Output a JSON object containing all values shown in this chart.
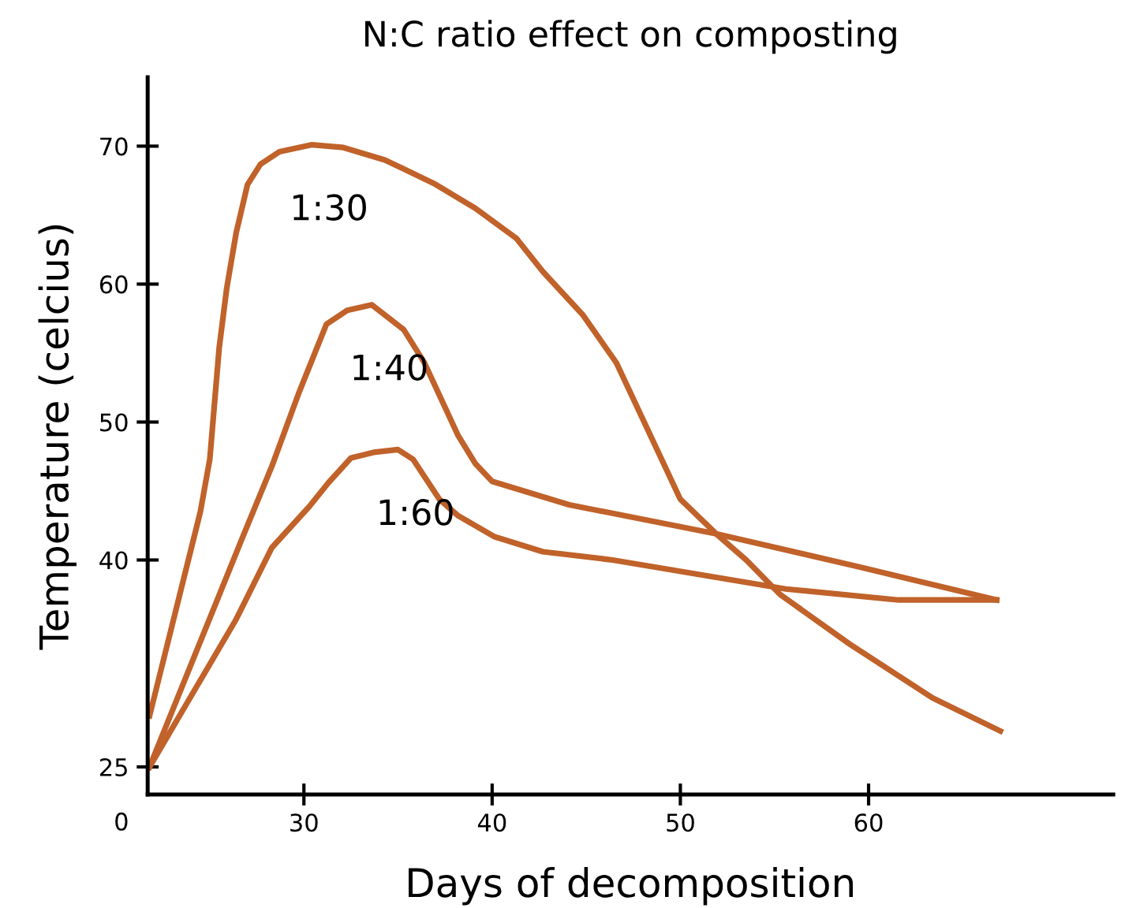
{
  "chart_data": {
    "type": "line",
    "title": "N:C ratio effect on composting",
    "xlabel": "Days of decomposition",
    "ylabel": "Temperature (celcius)",
    "xlim": [
      21.7,
      73
    ],
    "ylim": [
      23,
      75
    ],
    "xticks": [
      30,
      40,
      50,
      60
    ],
    "yticks": [
      25,
      40,
      50,
      60,
      70
    ],
    "grid": false,
    "marker": "none",
    "line_style": "solid",
    "series": [
      {
        "name": "1:30",
        "color": "#c0622a",
        "x": [
          21.8,
          24.5,
          25.0,
          25.5,
          25.9,
          26.4,
          27.0,
          27.7,
          28.7,
          30.4,
          32.1,
          34.3,
          36.9,
          39.1,
          41.3,
          42.7,
          44.8,
          46.6,
          50.0,
          51.9,
          53.5,
          55.3,
          59.0,
          63.4,
          67.0
        ],
        "values": [
          28.7,
          43.5,
          47.3,
          55.4,
          59.7,
          63.7,
          67.2,
          68.7,
          69.6,
          70.1,
          69.9,
          69.0,
          67.3,
          65.5,
          63.3,
          60.9,
          57.8,
          54.3,
          44.4,
          41.9,
          40.0,
          37.5,
          33.9,
          30.0,
          27.6
        ]
      },
      {
        "name": "1:40",
        "color": "#c0622a",
        "x": [
          21.8,
          26.7,
          28.3,
          29.7,
          31.2,
          32.3,
          33.6,
          35.3,
          36.4,
          38.2,
          39.1,
          40.0,
          44.1,
          51.9,
          59.5,
          66.8
        ],
        "values": [
          25,
          41.5,
          46.8,
          52.0,
          57.1,
          58.1,
          58.5,
          56.7,
          54.3,
          49.0,
          47.0,
          45.7,
          44.0,
          41.9,
          39.5,
          37.1
        ]
      },
      {
        "name": "1:60",
        "color": "#c0622a",
        "x": [
          21.8,
          26.4,
          28.3,
          30.3,
          31.3,
          32.5,
          33.7,
          35.0,
          35.8,
          37.2,
          38.2,
          40.1,
          42.7,
          46.4,
          55.6,
          61.6,
          66.8
        ],
        "values": [
          25,
          35.7,
          40.9,
          43.9,
          45.6,
          47.4,
          47.8,
          48.0,
          47.3,
          44.4,
          43.2,
          41.7,
          40.6,
          40.0,
          37.9,
          37.1,
          37.1
        ]
      }
    ],
    "annotations": [
      "0"
    ]
  }
}
